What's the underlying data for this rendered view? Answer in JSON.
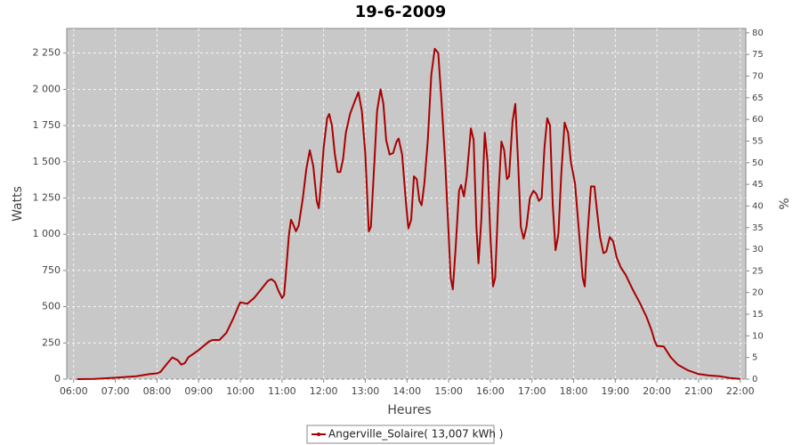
{
  "chart_data": {
    "type": "line",
    "title": "19-6-2009",
    "x_label": "Heures",
    "y_label": "Watts",
    "y2_label": "%",
    "x": [
      "06:05",
      "06:30",
      "07:00",
      "07:30",
      "07:50",
      "08:00",
      "08:05",
      "08:15",
      "08:22",
      "08:30",
      "08:35",
      "08:40",
      "08:45",
      "09:00",
      "09:15",
      "09:20",
      "09:30",
      "09:40",
      "09:50",
      "09:57",
      "10:00",
      "10:10",
      "10:20",
      "10:30",
      "10:40",
      "10:45",
      "10:50",
      "10:55",
      "11:00",
      "11:03",
      "11:06",
      "11:10",
      "11:13",
      "11:16",
      "11:20",
      "11:24",
      "11:30",
      "11:35",
      "11:40",
      "11:45",
      "11:50",
      "11:53",
      "11:57",
      "12:00",
      "12:05",
      "12:08",
      "12:12",
      "12:16",
      "12:20",
      "12:24",
      "12:28",
      "12:32",
      "12:38",
      "12:45",
      "12:50",
      "12:55",
      "13:00",
      "13:05",
      "13:08",
      "13:12",
      "13:17",
      "13:22",
      "13:26",
      "13:30",
      "13:35",
      "13:40",
      "13:45",
      "13:48",
      "13:53",
      "13:58",
      "14:02",
      "14:06",
      "14:10",
      "14:14",
      "14:18",
      "14:21",
      "14:25",
      "14:30",
      "14:35",
      "14:40",
      "14:45",
      "14:50",
      "14:55",
      "15:00",
      "15:03",
      "15:06",
      "15:10",
      "15:15",
      "15:18",
      "15:22",
      "15:26",
      "15:32",
      "15:36",
      "15:40",
      "15:43",
      "15:47",
      "15:52",
      "15:56",
      "16:00",
      "16:04",
      "16:07",
      "16:12",
      "16:16",
      "16:20",
      "16:24",
      "16:27",
      "16:32",
      "16:36",
      "16:40",
      "16:44",
      "16:48",
      "16:52",
      "16:57",
      "17:02",
      "17:06",
      "17:10",
      "17:14",
      "17:18",
      "17:22",
      "17:26",
      "17:30",
      "17:34",
      "17:38",
      "17:42",
      "17:47",
      "17:52",
      "17:56",
      "18:02",
      "18:08",
      "18:13",
      "18:16",
      "18:20",
      "18:25",
      "18:30",
      "18:34",
      "18:38",
      "18:43",
      "18:47",
      "18:52",
      "18:57",
      "19:02",
      "19:08",
      "19:15",
      "19:25",
      "19:35",
      "19:45",
      "19:52",
      "19:57",
      "20:00",
      "20:10",
      "20:20",
      "20:30",
      "20:45",
      "21:00",
      "21:15",
      "21:30",
      "21:45",
      "22:00"
    ],
    "series": [
      {
        "name": "Angerville_Solaire( 13,007 kWh )",
        "color": "#aa0000",
        "values": [
          0,
          2,
          10,
          20,
          35,
          40,
          50,
          110,
          150,
          130,
          100,
          110,
          150,
          200,
          260,
          270,
          270,
          320,
          420,
          500,
          530,
          520,
          560,
          620,
          680,
          690,
          670,
          610,
          560,
          580,
          750,
          1000,
          1100,
          1070,
          1020,
          1060,
          1250,
          1450,
          1580,
          1470,
          1230,
          1180,
          1400,
          1600,
          1800,
          1830,
          1750,
          1560,
          1430,
          1430,
          1520,
          1700,
          1830,
          1920,
          1980,
          1850,
          1550,
          1020,
          1050,
          1400,
          1850,
          2000,
          1900,
          1650,
          1550,
          1560,
          1640,
          1660,
          1550,
          1250,
          1040,
          1100,
          1400,
          1380,
          1230,
          1200,
          1350,
          1650,
          2100,
          2280,
          2250,
          1900,
          1500,
          1000,
          700,
          620,
          900,
          1300,
          1340,
          1260,
          1400,
          1730,
          1650,
          1050,
          800,
          1100,
          1700,
          1500,
          1000,
          640,
          700,
          1300,
          1640,
          1580,
          1380,
          1400,
          1780,
          1900,
          1500,
          1050,
          970,
          1050,
          1250,
          1300,
          1280,
          1230,
          1250,
          1600,
          1800,
          1750,
          1200,
          890,
          1000,
          1400,
          1770,
          1700,
          1500,
          1350,
          1000,
          700,
          640,
          1000,
          1330,
          1330,
          1150,
          980,
          870,
          880,
          980,
          950,
          840,
          770,
          720,
          620,
          530,
          430,
          340,
          260,
          230,
          225,
          150,
          100,
          60,
          35,
          25,
          20,
          8,
          2
        ]
      }
    ],
    "xlim": [
      "05:50",
      "22:08"
    ],
    "xticks": [
      "06:00",
      "07:00",
      "08:00",
      "09:00",
      "10:00",
      "11:00",
      "12:00",
      "13:00",
      "14:00",
      "15:00",
      "16:00",
      "17:00",
      "18:00",
      "19:00",
      "20:00",
      "21:00",
      "22:00"
    ],
    "ylim": [
      0,
      2420
    ],
    "yticks": [
      0,
      250,
      500,
      750,
      {
        "value": 1000,
        "label": "1 000"
      },
      {
        "value": 1250,
        "label": "1 250"
      },
      {
        "value": 1500,
        "label": "1 500"
      },
      {
        "value": 1750,
        "label": "1 750"
      },
      {
        "value": 2000,
        "label": "2 000"
      },
      {
        "value": 2250,
        "label": "2 250"
      }
    ],
    "y2lim": [
      0,
      81
    ],
    "y2ticks": [
      0,
      5,
      10,
      15,
      20,
      25,
      30,
      35,
      40,
      45,
      50,
      55,
      60,
      65,
      70,
      75,
      80
    ],
    "grid": true,
    "plot_background": "#c8c8c8",
    "legend": "bottom"
  }
}
